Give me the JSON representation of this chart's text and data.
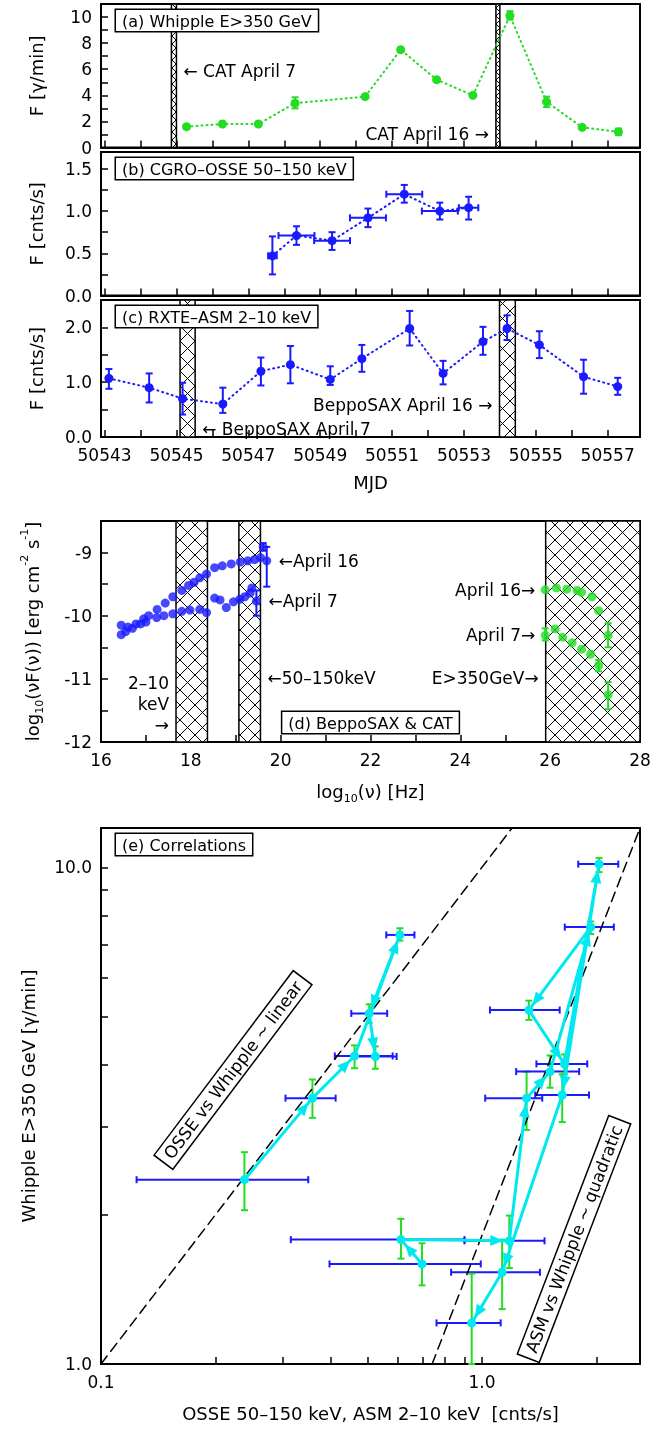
{
  "chart_data": [
    {
      "type": "line",
      "title": "(a) Whipple E>350 GeV",
      "ylabel": "F [γ/min]",
      "xlim": [
        50542.9,
        50557.9
      ],
      "xticks": [
        50543,
        {
          "value": 50544,
          "label": null
        },
        50545,
        {
          "value": 50546,
          "label": null
        },
        50547,
        {
          "value": 50548,
          "label": null
        },
        50549,
        {
          "value": 50550,
          "label": null
        },
        50551,
        {
          "value": 50552,
          "label": null
        },
        50553,
        {
          "value": 50554,
          "label": null
        },
        50555,
        {
          "value": 50556,
          "label": null
        },
        50557
      ],
      "ylim": [
        0,
        11
      ],
      "yticks": [
        0,
        {
          "value": 1,
          "label": null
        },
        2,
        {
          "value": 3,
          "label": null
        },
        4,
        {
          "value": 5,
          "label": null
        },
        6,
        {
          "value": 7,
          "label": null
        },
        8,
        {
          "value": 9,
          "label": null
        },
        10
      ],
      "tick_labels": "y",
      "marker": "circle",
      "line_style": "dotted",
      "bands": [
        {
          "axis": "x",
          "from": 50544.86,
          "to": 50545.0,
          "label": "← CAT April 7"
        },
        {
          "axis": "x",
          "from": 50553.89,
          "to": 50554.0,
          "label": "CAT April 16 →"
        }
      ],
      "series": [
        {
          "color": "#22dd22",
          "x": [
            50545.28,
            50546.28,
            50547.28,
            50548.3,
            50550.25,
            50551.24,
            50552.24,
            50553.25,
            50554.28,
            50555.3,
            50556.29,
            50557.3
          ],
          "values": [
            1.6,
            1.8,
            1.8,
            3.4,
            3.9,
            7.5,
            5.2,
            4.0,
            10.1,
            3.5,
            1.55,
            1.2
          ],
          "errors": [
            null,
            null,
            null,
            [
              3.0,
              3.85
            ],
            null,
            null,
            null,
            null,
            [
              9.8,
              10.45
            ],
            [
              3.1,
              3.9
            ],
            null,
            [
              0.95,
              1.45
            ]
          ]
        }
      ]
    },
    {
      "type": "line",
      "title": "(b) CGRO–OSSE 50–150 keV",
      "ylabel": "F [cnts/s]",
      "xlim": [
        50542.9,
        50557.9
      ],
      "xticks": [
        50543,
        {
          "value": 50544,
          "label": null
        },
        50545,
        {
          "value": 50546,
          "label": null
        },
        50547,
        {
          "value": 50548,
          "label": null
        },
        50549,
        {
          "value": 50550,
          "label": null
        },
        50551,
        {
          "value": 50552,
          "label": null
        },
        50553,
        {
          "value": 50554,
          "label": null
        },
        50555,
        {
          "value": 50556,
          "label": null
        },
        50557
      ],
      "ylim": [
        0,
        1.7
      ],
      "yticks": [
        {
          "value": 0,
          "label": "0.0"
        },
        {
          "value": 0.25,
          "label": null
        },
        0.5,
        {
          "value": 0.75,
          "label": null
        },
        {
          "value": 1,
          "label": "1.0"
        },
        {
          "value": 1.25,
          "label": null
        },
        1.5
      ],
      "tick_labels": "y",
      "marker": "circle",
      "line_style": "dotted",
      "series": [
        {
          "color": "#1a1aff",
          "x": [
            50547.67,
            50548.34,
            50549.33,
            50550.33,
            50551.34,
            50552.33,
            50553.13
          ],
          "values": [
            0.47,
            0.71,
            0.65,
            0.92,
            1.2,
            1.0,
            1.04
          ],
          "errors": [
            [
              0.25,
              0.7
            ],
            [
              0.6,
              0.82
            ],
            [
              0.54,
              0.75
            ],
            [
              0.81,
              1.03
            ],
            [
              1.1,
              1.31
            ],
            [
              0.9,
              1.1
            ],
            [
              0.9,
              1.17
            ]
          ],
          "xerrors": [
            [
              50547.55,
              50547.79
            ],
            [
              50547.84,
              50548.84
            ],
            [
              50548.83,
              50549.83
            ],
            [
              50549.83,
              50550.83
            ],
            [
              50550.84,
              50551.84
            ],
            [
              50551.83,
              50552.83
            ],
            [
              50552.86,
              50553.4
            ]
          ]
        }
      ]
    },
    {
      "type": "line",
      "title": "(c) RXTE–ASM 2–10 keV",
      "ylabel": "F [cnts/s]",
      "xlabel": "MJD",
      "xlim": [
        50542.9,
        50557.9
      ],
      "xticks": [
        50543,
        {
          "value": 50544,
          "label": null
        },
        50545,
        {
          "value": 50546,
          "label": null
        },
        50547,
        {
          "value": 50548,
          "label": null
        },
        50549,
        {
          "value": 50550,
          "label": null
        },
        50551,
        {
          "value": 50552,
          "label": null
        },
        50553,
        {
          "value": 50554,
          "label": null
        },
        50555,
        {
          "value": 50556,
          "label": null
        },
        50557
      ],
      "ylim": [
        0,
        2.5
      ],
      "yticks": [
        {
          "value": 0,
          "label": "0.0"
        },
        {
          "value": 0.5,
          "label": null
        },
        {
          "value": 1,
          "label": "1.0"
        },
        {
          "value": 1.5,
          "label": null
        },
        {
          "value": 2,
          "label": "2.0"
        }
      ],
      "marker": "circle",
      "line_style": "dotted",
      "bands": [
        {
          "axis": "x",
          "from": 50545.1,
          "to": 50545.52,
          "label": "← BeppoSAX April 7"
        },
        {
          "axis": "x",
          "from": 50553.99,
          "to": 50554.43,
          "label": "BeppoSAX April 16 →"
        }
      ],
      "series": [
        {
          "color": "#1a1aff",
          "x": [
            50543.12,
            50544.24,
            50545.17,
            50546.29,
            50547.35,
            50548.17,
            50549.28,
            50550.16,
            50551.49,
            50552.42,
            50553.53,
            50554.2,
            50555.1,
            50556.33,
            50557.28
          ],
          "values": [
            1.07,
            0.9,
            0.7,
            0.6,
            1.2,
            1.32,
            1.05,
            1.43,
            1.98,
            1.16,
            1.74,
            1.98,
            1.68,
            1.1,
            0.92
          ],
          "errors": [
            [
              0.88,
              1.24
            ],
            [
              0.63,
              1.16
            ],
            [
              0.41,
              0.99
            ],
            [
              0.44,
              0.9
            ],
            [
              0.94,
              1.45
            ],
            [
              0.98,
              1.66
            ],
            [
              0.95,
              1.29
            ],
            [
              1.19,
              1.68
            ],
            [
              1.67,
              2.3
            ],
            [
              0.96,
              1.39
            ],
            [
              1.5,
              2.01
            ],
            [
              1.77,
              2.22
            ],
            [
              1.44,
              1.93
            ],
            [
              0.79,
              1.41
            ],
            [
              0.77,
              1.08
            ]
          ]
        }
      ]
    },
    {
      "type": "scatter",
      "title": "(d) BeppoSAX & CAT",
      "xlabel": "log$_{10}$(ν) [Hz]",
      "ylabel": "log$_{10}$(νF(ν)) [erg cm$^{-2}$ s$^{-1}$]",
      "xlim": [
        16,
        28
      ],
      "xticks": [
        16,
        {
          "value": 17,
          "label": null
        },
        18,
        {
          "value": 19,
          "label": null
        },
        20,
        {
          "value": 21,
          "label": null
        },
        22,
        {
          "value": 23,
          "label": null
        },
        24,
        {
          "value": 25,
          "label": null
        },
        26,
        {
          "value": 27,
          "label": null
        },
        28
      ],
      "ylim": [
        -12,
        -8.5
      ],
      "yticks": [
        -12,
        {
          "value": -11.5,
          "label": null
        },
        -11,
        {
          "value": -10.5,
          "label": null
        },
        -10,
        {
          "value": -9.5,
          "label": null
        },
        -9
      ],
      "marker": "circle",
      "bands": [
        {
          "axis": "x",
          "from": 17.67,
          "to": 18.37,
          "label": "2–10 keV→"
        },
        {
          "axis": "x",
          "from": 19.07,
          "to": 19.55,
          "label": "←50–150keV"
        },
        {
          "axis": "x",
          "from": 25.9,
          "to": 28,
          "label": "E>350GeV→"
        }
      ],
      "annotations": [
        {
          "text": "←April 16",
          "x": 19.69,
          "y": -9.13
        },
        {
          "text": "←April 7",
          "x": 19.46,
          "y": -9.77
        },
        {
          "text": "April 16→",
          "x": 25.89,
          "y": -9.59
        },
        {
          "text": "April 7→",
          "x": 25.89,
          "y": -10.31
        }
      ],
      "series": [
        {
          "color": "#1a1aff",
          "x": [
            16.45,
            16.6,
            16.78,
            16.95,
            17.06,
            17.25,
            17.43,
            17.6,
            17.8,
            17.95,
            18.07,
            18.2,
            18.35,
            18.53,
            18.7,
            18.9,
            19.1,
            19.27,
            19.42,
            19.55,
            19.61,
            19.69
          ],
          "values": [
            -10.15,
            -10.18,
            -10.13,
            -10.05,
            -10.0,
            -9.9,
            -9.8,
            -9.7,
            -9.6,
            -9.52,
            -9.47,
            -9.4,
            -9.34,
            -9.24,
            -9.21,
            -9.18,
            -9.15,
            -9.13,
            -9.11,
            -9.08,
            -8.91,
            -9.13
          ],
          "errors": [
            null,
            null,
            null,
            null,
            null,
            null,
            null,
            null,
            null,
            null,
            null,
            null,
            null,
            null,
            null,
            null,
            null,
            null,
            null,
            null,
            [
              -8.97,
              -8.85
            ],
            [
              -9.54,
              -8.91
            ]
          ]
        },
        {
          "color": "#1a1aff",
          "x": [
            16.45,
            16.55,
            16.7,
            16.88,
            17.0,
            17.24,
            17.4,
            17.6,
            17.8,
            17.98,
            18.2,
            18.35,
            18.53,
            18.65,
            18.79,
            18.95,
            19.09,
            19.2,
            19.32,
            19.36,
            19.46
          ],
          "values": [
            -10.3,
            -10.25,
            -10.2,
            -10.13,
            -10.1,
            -10.03,
            -10.0,
            -9.97,
            -9.93,
            -9.91,
            -9.9,
            -9.95,
            -9.72,
            -9.75,
            -9.87,
            -9.78,
            -9.74,
            -9.7,
            -9.64,
            -9.56,
            -9.77
          ],
          "errors": [
            null,
            null,
            null,
            null,
            null,
            null,
            null,
            null,
            null,
            null,
            null,
            null,
            null,
            null,
            null,
            null,
            null,
            null,
            null,
            null,
            [
              -10.0,
              -9.6
            ]
          ]
        },
        {
          "color": "#22dd22",
          "x": [
            25.89,
            26.14,
            26.37,
            26.6,
            26.7,
            26.93,
            27.08,
            27.29
          ],
          "values": [
            -9.59,
            -9.56,
            -9.58,
            -9.6,
            -9.63,
            -9.7,
            -9.92,
            -10.31
          ],
          "errors": [
            null,
            null,
            null,
            null,
            null,
            null,
            null,
            [
              -10.5,
              -10.12
            ]
          ]
        },
        {
          "color": "#22dd22",
          "x": [
            25.89,
            26.11,
            26.28,
            26.49,
            26.7,
            26.9,
            27.08,
            27.29
          ],
          "values": [
            -10.31,
            -10.21,
            -10.34,
            -10.43,
            -10.53,
            -10.61,
            -10.79,
            -11.25
          ],
          "errors": [
            [
              -10.39,
              -10.2
            ],
            null,
            null,
            null,
            null,
            null,
            [
              -10.88,
              -10.7
            ],
            [
              -11.48,
              -11.05
            ]
          ]
        }
      ]
    },
    {
      "type": "line",
      "title": "(e) Correlations",
      "xlabel": "OSSE 50–150 keV, ASM 2–10 keV  [cnts/s]",
      "ylabel": "Whipple E>350 GeV [γ/min]",
      "log": "xy",
      "xlim": [
        0.1,
        2.6
      ],
      "xticks": [
        0.1,
        {
          "value": 0.2,
          "label": null
        },
        {
          "value": 0.3,
          "label": null
        },
        {
          "value": 0.4,
          "label": null
        },
        {
          "value": 0.5,
          "label": null
        },
        {
          "value": 0.6,
          "label": null
        },
        {
          "value": 0.7,
          "label": null
        },
        {
          "value": 0.8,
          "label": null
        },
        {
          "value": 0.9,
          "label": null
        },
        {
          "value": 1,
          "label": "1.0"
        },
        {
          "value": 2,
          "label": null
        }
      ],
      "ylim": [
        1,
        12
      ],
      "yticks": [
        {
          "value": 1,
          "label": "1.0"
        },
        {
          "value": 2,
          "label": null
        },
        {
          "value": 3,
          "label": null
        },
        {
          "value": 4,
          "label": null
        },
        {
          "value": 5,
          "label": null
        },
        {
          "value": 6,
          "label": null
        },
        {
          "value": 7,
          "label": null
        },
        {
          "value": 8,
          "label": null
        },
        {
          "value": 9,
          "label": null
        },
        {
          "value": 10,
          "label": "10.0"
        }
      ],
      "marker": "circle",
      "line_style": "solid",
      "annotations": [
        "OSSE vs Whipple ~ linear",
        "ASM vs Whipple ~ quadratic"
      ],
      "series": [
        {
          "type": "line",
          "color": "#000000",
          "line_style": "dashed",
          "marker": "none",
          "x": [
            0.1,
            1.2
          ],
          "values": [
            1,
            12
          ]
        },
        {
          "type": "line",
          "color": "#000000",
          "line_style": "dashed",
          "marker": "none",
          "x": [
            0.74,
            2.6
          ],
          "values": [
            1,
            12
          ]
        },
        {
          "color": "#00e8f0",
          "x": [
            0.238,
            0.359,
            0.463,
            0.609,
            0.506,
            0.525
          ],
          "values": [
            2.35,
            3.43,
            4.17,
            7.31,
            5.08,
            4.16
          ],
          "xerrors": [
            [
              0.124,
              0.35
            ],
            [
              0.305,
              0.413
            ],
            [
              0.411,
              0.583
            ],
            [
              0.561,
              0.665
            ],
            [
              0.454,
              0.564
            ],
            [
              0.461,
              0.597
            ]
          ],
          "errors": [
            [
              2.04,
              2.67
            ],
            [
              3.13,
              3.74
            ],
            [
              3.94,
              4.38
            ],
            [
              7.12,
              7.54
            ],
            [
              4.86,
              5.3
            ],
            [
              3.93,
              4.36
            ]
          ]
        },
        {
          "color": "#00e8f0",
          "x": [
            0.696,
            0.613,
            1.18,
            1.31,
            1.51,
            1.93,
            1.328,
            1.646,
            2.03,
            1.625,
            1.13,
            0.94
          ],
          "values": [
            1.59,
            1.78,
            1.77,
            3.43,
            3.88,
            7.58,
            5.16,
            4.02,
            10.15,
            3.48,
            1.53,
            1.21
          ],
          "xerrors": [
            [
              0.398,
              0.993
            ],
            [
              0.315,
              0.9
            ],
            [
              0.9,
              1.46
            ],
            [
              1.02,
              1.44
            ],
            [
              1.23,
              1.8
            ],
            [
              1.65,
              2.22
            ],
            [
              1.05,
              1.6
            ],
            [
              1.39,
              1.89
            ],
            [
              1.79,
              2.28
            ],
            [
              1.38,
              1.91
            ],
            [
              0.83,
              1.42
            ],
            [
              0.76,
              1.12
            ]
          ],
          "errors": [
            [
              1.44,
              1.75
            ],
            [
              1.63,
              1.96
            ],
            [
              1.56,
              1.99
            ],
            [
              2.96,
              3.88
            ],
            [
              3.6,
              4.18
            ],
            [
              7.34,
              7.78
            ],
            [
              4.93,
              5.39
            ],
            [
              3.83,
              4.2
            ],
            [
              9.78,
              10.45
            ],
            [
              3.07,
              3.83
            ],
            [
              1.29,
              1.78
            ],
            [
              1.0,
              1.52
            ]
          ]
        }
      ]
    }
  ]
}
